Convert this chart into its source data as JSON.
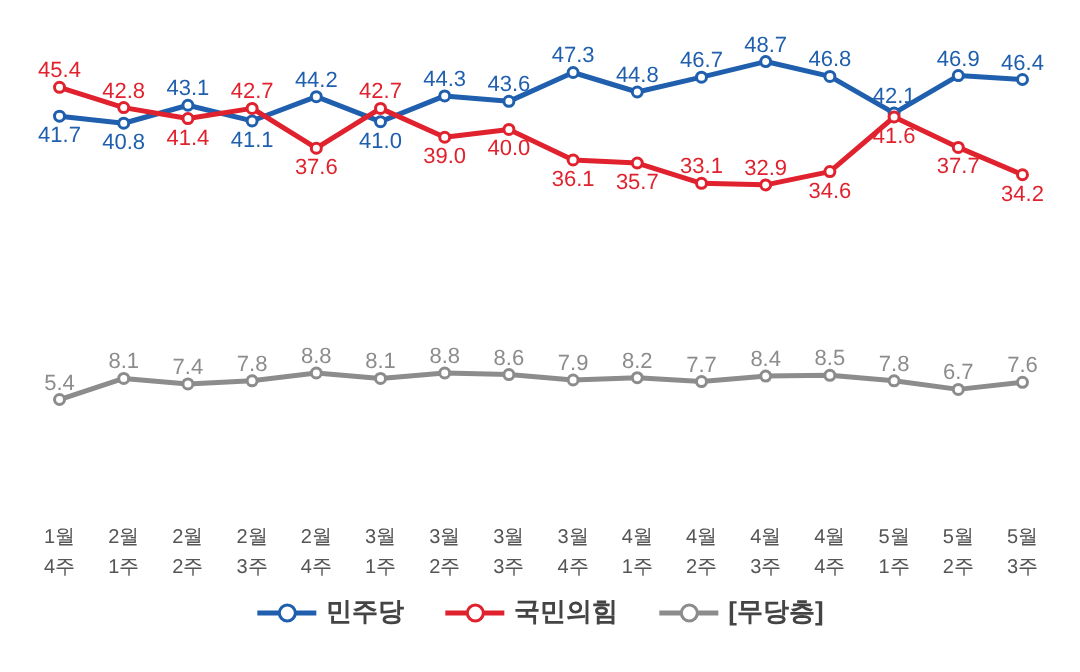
{
  "chart_data": {
    "type": "line",
    "categories": [
      "1월\n4주",
      "2월\n1주",
      "2월\n2주",
      "2월\n3주",
      "2월\n4주",
      "3월\n1주",
      "3월\n2주",
      "3월\n3주",
      "3월\n4주",
      "4월\n1주",
      "4월\n2주",
      "4월\n3주",
      "4월\n4주",
      "5월\n1주",
      "5월\n2주",
      "5월\n3주"
    ],
    "series": [
      {
        "name": "민주당",
        "color": "#1f5fae",
        "values": [
          41.7,
          40.8,
          43.1,
          41.1,
          44.2,
          41.0,
          44.3,
          43.6,
          47.3,
          44.8,
          46.7,
          48.7,
          46.8,
          42.1,
          46.9,
          46.4
        ],
        "value_labels": [
          "41.7",
          "40.8",
          "43.1",
          "41.1",
          "44.2",
          "41.0",
          "44.3",
          "43.6",
          "47.3",
          "44.8",
          "46.7",
          "48.7",
          "46.8",
          "42.1",
          "46.9",
          "46.4"
        ]
      },
      {
        "name": "국민의힘",
        "color": "#e0222e",
        "values": [
          45.4,
          42.8,
          41.4,
          42.7,
          37.6,
          42.7,
          39.0,
          40.0,
          36.1,
          35.7,
          33.1,
          32.9,
          34.6,
          41.6,
          37.7,
          34.2
        ],
        "value_labels": [
          "45.4",
          "42.8",
          "41.4",
          "42.7",
          "37.6",
          "42.7",
          "39.0",
          "40.0",
          "36.1",
          "35.7",
          "33.1",
          "32.9",
          "34.6",
          "41.6",
          "37.7",
          "34.2"
        ]
      },
      {
        "name": "[무당층]",
        "color": "#8c8c8c",
        "values": [
          5.4,
          8.1,
          7.4,
          7.8,
          8.8,
          8.1,
          8.8,
          8.6,
          7.9,
          8.2,
          7.7,
          8.4,
          8.5,
          7.8,
          6.7,
          7.6
        ],
        "value_labels": [
          "5.4",
          "8.1",
          "7.4",
          "7.8",
          "8.8",
          "8.1",
          "8.8",
          "8.6",
          "7.9",
          "8.2",
          "7.7",
          "8.4",
          "8.5",
          "7.8",
          "6.7",
          "7.6"
        ]
      }
    ],
    "data_labels": true,
    "marker": "circle",
    "line_style": "solid",
    "grid": false,
    "legend": "bottom"
  }
}
